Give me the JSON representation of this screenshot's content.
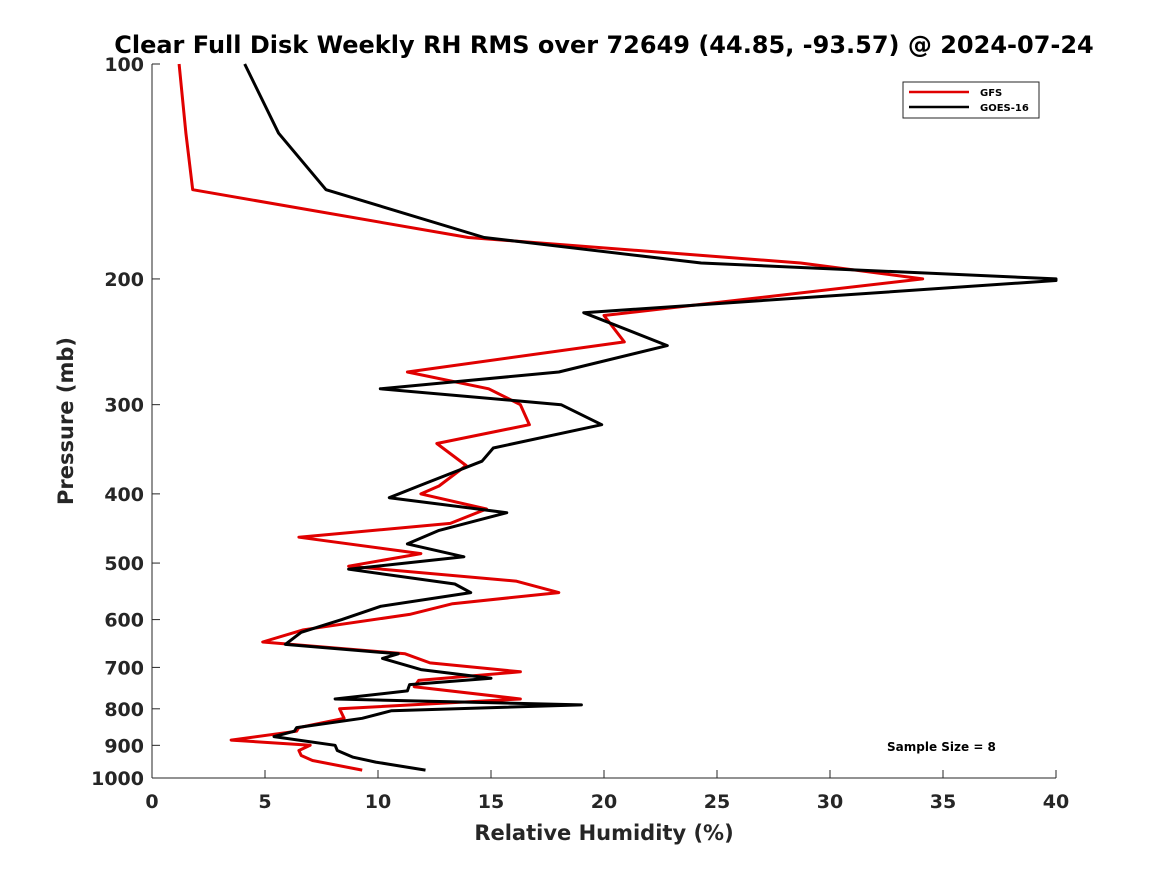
{
  "chart_data": {
    "type": "line",
    "title": "Clear Full Disk Weekly RH RMS over 72649 (44.85, -93.57) @ 2024-07-24",
    "xlabel": "Relative Humidity (%)",
    "ylabel": "Pressure (mb)",
    "xlim": [
      0,
      40
    ],
    "ylim": [
      100,
      1000
    ],
    "yscale": "log",
    "y_reversed": true,
    "xticks": [
      0,
      5,
      10,
      15,
      20,
      25,
      30,
      35,
      40
    ],
    "xtick_labels": [
      "0",
      "5",
      "10",
      "15",
      "20",
      "25",
      "30",
      "35",
      "40"
    ],
    "yticks": [
      100,
      200,
      300,
      400,
      500,
      600,
      700,
      800,
      900,
      1000
    ],
    "ytick_labels": [
      "100",
      "200",
      "300",
      "400",
      "500",
      "600",
      "700",
      "800",
      "900",
      "1000"
    ],
    "legend_position": "top-right",
    "grid": false,
    "annotation": "Sample Size = 8",
    "series": [
      {
        "name": "GFS",
        "color": "#e00000",
        "points": [
          [
            1.2,
            100
          ],
          [
            1.5,
            125
          ],
          [
            1.8,
            150
          ],
          [
            14.0,
            175
          ],
          [
            28.7,
            190
          ],
          [
            34.1,
            200
          ],
          [
            20.0,
            225
          ],
          [
            20.9,
            245
          ],
          [
            11.3,
            270
          ],
          [
            14.9,
            285
          ],
          [
            16.3,
            300
          ],
          [
            16.7,
            320
          ],
          [
            12.6,
            340
          ],
          [
            13.9,
            365
          ],
          [
            12.7,
            390
          ],
          [
            11.9,
            400
          ],
          [
            14.8,
            420
          ],
          [
            13.2,
            440
          ],
          [
            6.5,
            460
          ],
          [
            11.9,
            485
          ],
          [
            8.7,
            505
          ],
          [
            16.1,
            530
          ],
          [
            18.0,
            550
          ],
          [
            13.3,
            570
          ],
          [
            11.4,
            590
          ],
          [
            6.7,
            620
          ],
          [
            4.9,
            645
          ],
          [
            11.2,
            670
          ],
          [
            12.3,
            690
          ],
          [
            16.3,
            710
          ],
          [
            11.8,
            730
          ],
          [
            11.6,
            745
          ],
          [
            16.3,
            775
          ],
          [
            8.3,
            800
          ],
          [
            8.5,
            825
          ],
          [
            6.5,
            850
          ],
          [
            6.4,
            860
          ],
          [
            3.5,
            885
          ],
          [
            7.0,
            900
          ],
          [
            6.5,
            915
          ],
          [
            6.6,
            930
          ],
          [
            7.1,
            945
          ],
          [
            9.3,
            975
          ]
        ]
      },
      {
        "name": "GOES-16",
        "color": "#000000",
        "points": [
          [
            4.1,
            100
          ],
          [
            5.6,
            125
          ],
          [
            7.7,
            150
          ],
          [
            14.7,
            175
          ],
          [
            24.3,
            190
          ],
          [
            40.0,
            200
          ],
          [
            40.0,
            201
          ],
          [
            19.1,
            223
          ],
          [
            22.8,
            248
          ],
          [
            18.0,
            270
          ],
          [
            10.1,
            285
          ],
          [
            18.1,
            300
          ],
          [
            19.9,
            320
          ],
          [
            15.1,
            345
          ],
          [
            14.6,
            360
          ],
          [
            11.8,
            390
          ],
          [
            10.5,
            405
          ],
          [
            15.7,
            425
          ],
          [
            12.7,
            450
          ],
          [
            11.3,
            470
          ],
          [
            13.8,
            490
          ],
          [
            8.7,
            510
          ],
          [
            13.4,
            535
          ],
          [
            14.1,
            550
          ],
          [
            10.1,
            575
          ],
          [
            8.4,
            600
          ],
          [
            6.6,
            625
          ],
          [
            5.9,
            650
          ],
          [
            10.9,
            670
          ],
          [
            10.2,
            680
          ],
          [
            11.9,
            705
          ],
          [
            15.0,
            725
          ],
          [
            11.4,
            740
          ],
          [
            11.3,
            755
          ],
          [
            8.1,
            775
          ],
          [
            19.0,
            790
          ],
          [
            10.6,
            805
          ],
          [
            9.3,
            825
          ],
          [
            6.4,
            850
          ],
          [
            6.3,
            860
          ],
          [
            5.4,
            875
          ],
          [
            8.1,
            900
          ],
          [
            8.2,
            915
          ],
          [
            8.9,
            935
          ],
          [
            9.9,
            950
          ],
          [
            12.1,
            975
          ]
        ]
      }
    ]
  }
}
